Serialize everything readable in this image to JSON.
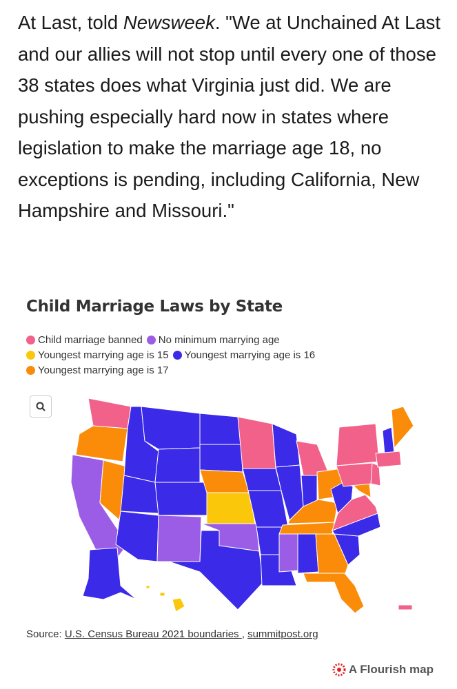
{
  "article": {
    "text_before": "At Last, told ",
    "text_italic": "Newsweek",
    "text_after": ". \"We at Unchained At Last and our allies will not stop until every one of those 38 states does what Virginia just did. We are pushing especially hard now in states where legislation to make the marriage age 18, no exceptions is pending, including California, New Hampshire and Missouri.\""
  },
  "map": {
    "title": "Child Marriage Laws by State",
    "legend": [
      {
        "label": "Child marriage banned",
        "color": "#f2618a"
      },
      {
        "label": "No minimum marrying age",
        "color": "#9b5de5"
      },
      {
        "label": "Youngest marrying age is 15",
        "color": "#fbc70a"
      },
      {
        "label": "Youngest marrying age is 16",
        "color": "#3b2ae8"
      },
      {
        "label": "Youngest marrying age is 17",
        "color": "#fb8c0a"
      }
    ],
    "source_label": "Source:",
    "source_links": [
      "U.S. Census Bureau 2021 boundaries ",
      "summitpost.org"
    ],
    "source_separator": ",",
    "credit": "A Flourish map"
  }
}
